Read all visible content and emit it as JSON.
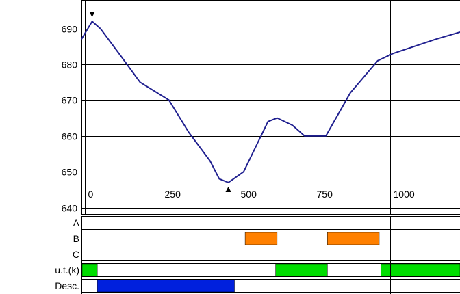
{
  "chart_data": {
    "type": "line",
    "x_ticks": [
      0,
      250,
      500,
      750,
      1000
    ],
    "y_ticks": [
      640,
      650,
      660,
      670,
      680,
      690
    ],
    "xlim": [
      -12,
      1230
    ],
    "ylim": [
      638,
      697
    ],
    "grid": true,
    "series": [
      {
        "color": "#1f1f8f",
        "points": [
          [
            -12,
            687
          ],
          [
            23,
            692
          ],
          [
            50,
            690
          ],
          [
            120,
            682
          ],
          [
            180,
            675
          ],
          [
            275,
            670
          ],
          [
            340,
            661
          ],
          [
            410,
            653
          ],
          [
            440,
            648
          ],
          [
            470,
            647
          ],
          [
            520,
            650
          ],
          [
            600,
            664
          ],
          [
            630,
            665
          ],
          [
            680,
            663
          ],
          [
            720,
            660
          ],
          [
            790,
            660
          ],
          [
            870,
            672
          ],
          [
            930,
            678
          ],
          [
            960,
            681
          ],
          [
            1010,
            683
          ],
          [
            1150,
            687
          ],
          [
            1230,
            689
          ]
        ]
      }
    ],
    "markers": [
      {
        "symbol": "▼",
        "x": 23,
        "y": 692,
        "position": "above"
      },
      {
        "symbol": "▲",
        "x": 470,
        "y": 647,
        "position": "below"
      }
    ],
    "tracks": [
      {
        "label": "A",
        "segments": []
      },
      {
        "label": "B",
        "segments": [
          {
            "start": 525,
            "end": 630,
            "color": "#ff8000"
          },
          {
            "start": 795,
            "end": 965,
            "color": "#ff8000"
          }
        ]
      },
      {
        "label": "C",
        "segments": []
      },
      {
        "label": "u.t.(k)",
        "segments": [
          {
            "start": -12,
            "end": 40,
            "color": "#00dd00"
          },
          {
            "start": 625,
            "end": 795,
            "color": "#00dd00"
          },
          {
            "start": 970,
            "end": 1230,
            "color": "#00dd00"
          }
        ]
      },
      {
        "label": "Desc.",
        "segments": [
          {
            "start": 40,
            "end": 490,
            "color": "#0020dd"
          }
        ]
      }
    ],
    "colors": {
      "track_border": "#000000",
      "track_fill": "#ffffff"
    }
  }
}
